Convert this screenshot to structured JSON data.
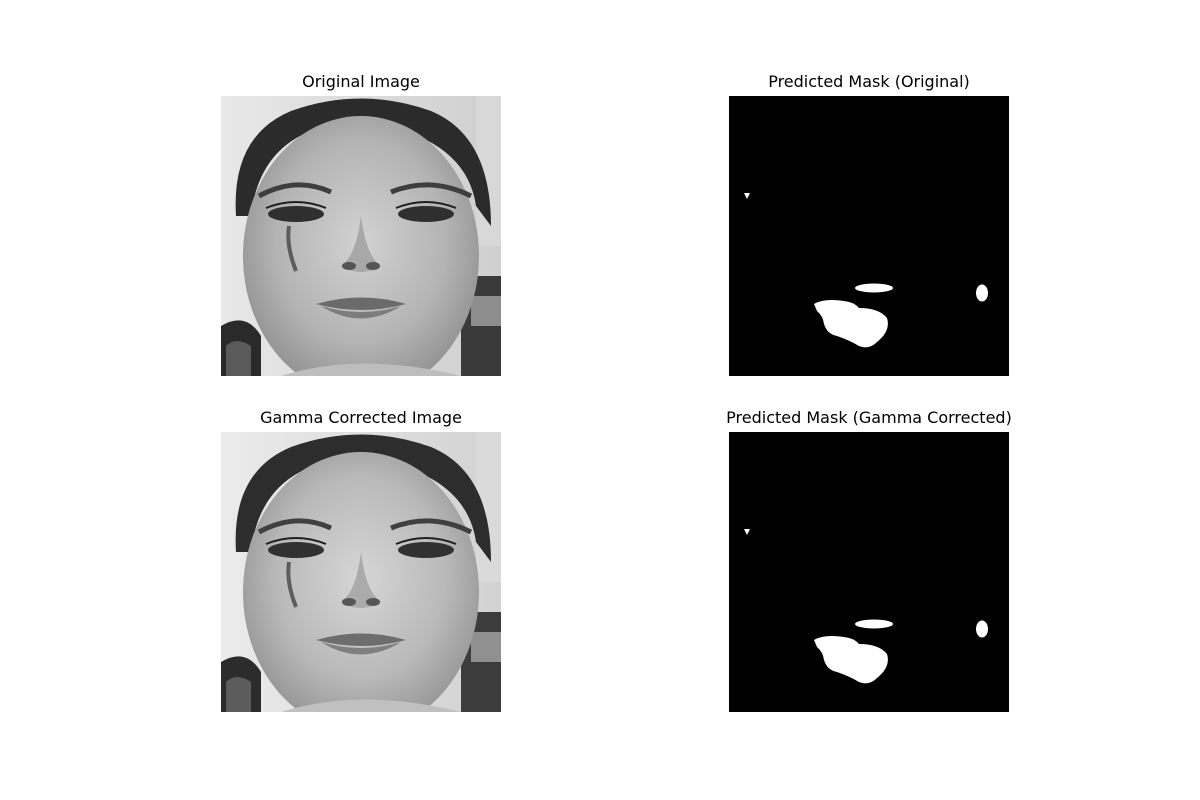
{
  "panels": [
    {
      "title": "Original Image",
      "kind": "photo"
    },
    {
      "title": "Predicted Mask (Original)",
      "kind": "mask"
    },
    {
      "title": "Gamma Corrected Image",
      "kind": "photo"
    },
    {
      "title": "Predicted Mask (Gamma Corrected)",
      "kind": "mask"
    }
  ],
  "colors": {
    "background": "#ffffff",
    "mask_background": "#000000",
    "mask_foreground": "#ffffff"
  }
}
